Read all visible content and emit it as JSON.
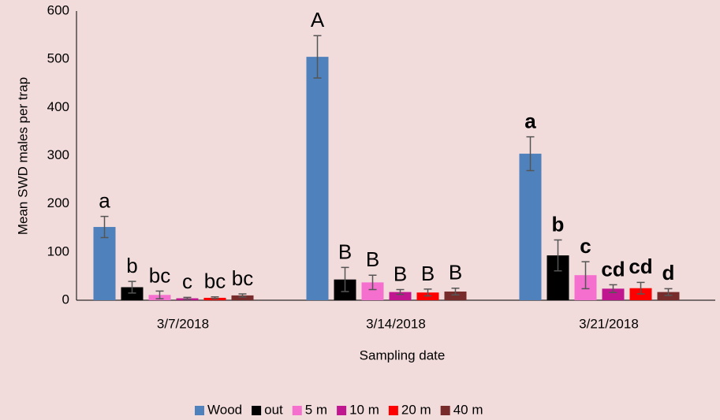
{
  "chart_data": {
    "type": "bar",
    "xlabel": "Sampling date",
    "ylabel": "Mean SWD males per trap",
    "categories": [
      "3/7/2018",
      "3/14/2018",
      "3/21/2018"
    ],
    "ylim": [
      0,
      600
    ],
    "yticks": [
      0,
      100,
      200,
      300,
      400,
      500,
      600
    ],
    "grid": false,
    "legend": "bottom",
    "letters_bold": [
      false,
      false,
      true
    ],
    "series": [
      {
        "name": "Wood",
        "color": "#4f81bd",
        "values": [
          152,
          505,
          304
        ],
        "errors": [
          22,
          44,
          35
        ],
        "letters": [
          "a",
          "A",
          "a"
        ]
      },
      {
        "name": "out",
        "color": "#000000",
        "values": [
          27,
          43,
          93
        ],
        "errors": [
          12,
          25,
          32
        ],
        "letters": [
          "b",
          "B",
          "b"
        ]
      },
      {
        "name": "5 m",
        "color": "#f56fcf",
        "values": [
          11,
          37,
          52
        ],
        "errors": [
          8,
          15,
          28
        ],
        "letters": [
          "bc",
          "B",
          "c"
        ]
      },
      {
        "name": "10 m",
        "color": "#c0168f",
        "values": [
          4,
          17,
          24
        ],
        "errors": [
          2,
          5,
          8
        ],
        "letters": [
          "c",
          "B",
          "cd"
        ]
      },
      {
        "name": "20 m",
        "color": "#ff0000",
        "values": [
          5,
          16,
          25
        ],
        "errors": [
          2,
          7,
          12
        ],
        "letters": [
          "bc",
          "B",
          "cd"
        ]
      },
      {
        "name": "40 m",
        "color": "#772b2b",
        "values": [
          10,
          18,
          17
        ],
        "errors": [
          3,
          7,
          7
        ],
        "letters": [
          "bc",
          "B",
          "d"
        ]
      }
    ]
  }
}
